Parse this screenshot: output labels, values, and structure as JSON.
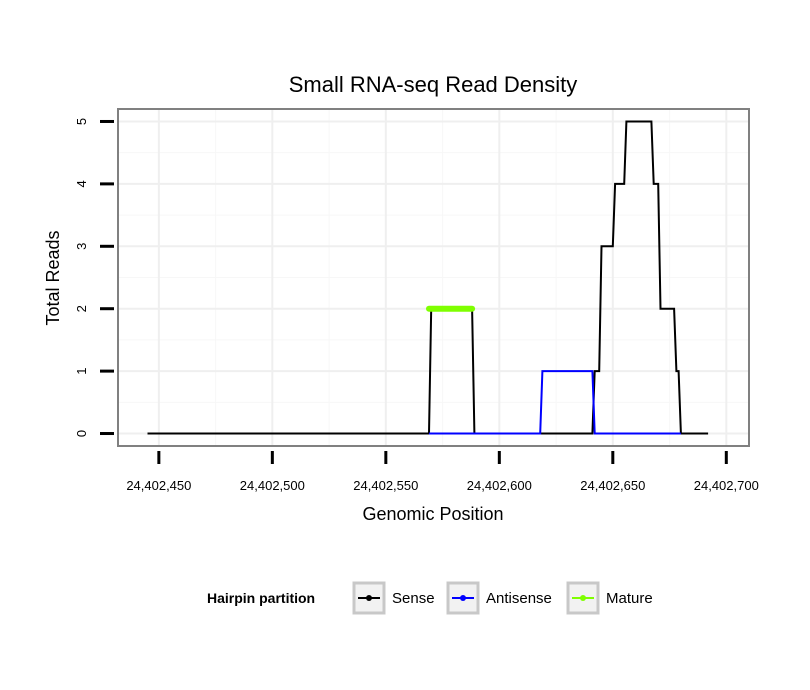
{
  "chart_data": {
    "type": "line",
    "title": "Small RNA-seq Read Density",
    "xlabel": "Genomic Position",
    "ylabel": "Total Reads",
    "xlim": [
      24402432,
      24402710
    ],
    "ylim": [
      -0.2,
      5.2
    ],
    "x_ticks": [
      24402450,
      24402500,
      24402550,
      24402600,
      24402650,
      24402700
    ],
    "x_tick_labels": [
      "24,402,450",
      "24,402,500",
      "24,402,550",
      "24,402,600",
      "24,402,650",
      "24,402,700"
    ],
    "y_ticks": [
      0,
      1,
      2,
      3,
      4,
      5
    ],
    "y_tick_labels": [
      "0",
      "1",
      "2",
      "3",
      "4",
      "5"
    ],
    "grid": true,
    "legend": {
      "title": "Hairpin partition",
      "position": "bottom",
      "entries": [
        {
          "name": "Sense",
          "color": "#000000"
        },
        {
          "name": "Antisense",
          "color": "#0000ff"
        },
        {
          "name": "Mature",
          "color": "#7fff00"
        }
      ]
    },
    "series": [
      {
        "name": "Sense",
        "color": "#000000",
        "x": [
          24402445,
          24402569,
          24402570,
          24402588,
          24402589,
          24402641,
          24402642,
          24402644,
          24402645,
          24402650,
          24402651,
          24402655,
          24402656,
          24402660,
          24402661,
          24402667,
          24402668,
          24402670,
          24402671,
          24402677,
          24402678,
          24402679,
          24402680,
          24402692
        ],
        "values": [
          0,
          0,
          2,
          2,
          0,
          0,
          1,
          1,
          3,
          3,
          4,
          4,
          5,
          5,
          5,
          5,
          4,
          4,
          2,
          2,
          1,
          1,
          0,
          0
        ]
      },
      {
        "name": "Antisense",
        "color": "#0000ff",
        "x": [
          24402569,
          24402618,
          24402619,
          24402641,
          24402642,
          24402680
        ],
        "values": [
          0,
          0,
          1,
          1,
          0,
          0
        ]
      },
      {
        "name": "Mature",
        "color": "#7fff00",
        "x": [
          24402569,
          24402588
        ],
        "values": [
          2,
          2
        ]
      }
    ]
  }
}
